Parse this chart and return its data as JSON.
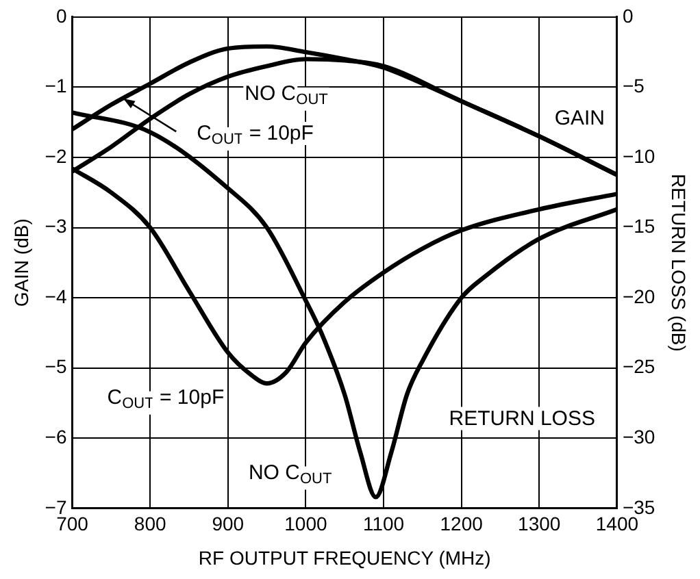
{
  "chart_data": {
    "type": "line",
    "xlabel": "RF OUTPUT FREQUENCY (MHz)",
    "ylabel": "GAIN (dB)",
    "y2label": "RETURN LOSS (dB)",
    "xlim": [
      700,
      1400
    ],
    "xticks": [
      700,
      800,
      900,
      1000,
      1100,
      1200,
      1300,
      1400
    ],
    "ylim": [
      -7,
      0
    ],
    "yticks": [
      {
        "value": -7,
        "label": "−7"
      },
      {
        "value": -6,
        "label": "−6"
      },
      {
        "value": -5,
        "label": "−5"
      },
      {
        "value": -4,
        "label": "−4"
      },
      {
        "value": -3,
        "label": "−3"
      },
      {
        "value": -2,
        "label": "−2"
      },
      {
        "value": -1,
        "label": "−1"
      },
      0
    ],
    "y2lim": [
      -35,
      0
    ],
    "y2ticks": [
      {
        "value": -35,
        "label": "−35"
      },
      {
        "value": -30,
        "label": "−30"
      },
      {
        "value": -25,
        "label": "−25"
      },
      {
        "value": -20,
        "label": "−20"
      },
      {
        "value": -15,
        "label": "−15"
      },
      {
        "value": -10,
        "label": "−10"
      },
      {
        "value": -5,
        "label": "−5"
      },
      0
    ],
    "grid": true,
    "legend": false,
    "marker": "none",
    "line_style": "solid",
    "series": [
      {
        "color": "#000000",
        "x": [
          700,
          750,
          800,
          850,
          900,
          950,
          1000,
          1050,
          1100,
          1200,
          1300,
          1400
        ],
        "values": [
          -2.2,
          -1.85,
          -1.45,
          -1.1,
          -0.85,
          -0.7,
          -0.6,
          -0.62,
          -0.7,
          -1.2,
          -1.7,
          -2.25
        ]
      },
      {
        "color": "#000000",
        "x": [
          700,
          750,
          800,
          850,
          900,
          950,
          1000,
          1050,
          1100,
          1150,
          1200,
          1300,
          1400
        ],
        "values": [
          -1.6,
          -1.25,
          -0.95,
          -0.65,
          -0.45,
          -0.42,
          -0.5,
          -0.6,
          -0.72,
          -0.95,
          -1.2,
          -1.7,
          -2.25
        ]
      },
      {
        "color": "#000000",
        "axis": "y2",
        "x": [
          700,
          750,
          800,
          850,
          900,
          930,
          950,
          975,
          1000,
          1050,
          1100,
          1150,
          1200,
          1300,
          1400
        ],
        "values": [
          -10.8,
          -12.5,
          -15,
          -19.5,
          -23.9,
          -25.5,
          -26.1,
          -25.3,
          -23.2,
          -20.3,
          -18.2,
          -16.5,
          -15.2,
          -13.7,
          -12.6
        ]
      },
      {
        "color": "#000000",
        "axis": "y2",
        "x": [
          700,
          800,
          900,
          950,
          1000,
          1020,
          1050,
          1070,
          1090,
          1110,
          1130,
          1150,
          1200,
          1230,
          1300,
          1400
        ],
        "values": [
          -6.8,
          -8.2,
          -12.2,
          -15,
          -20.2,
          -22.5,
          -26.9,
          -31,
          -34.2,
          -31,
          -26.9,
          -24.5,
          -20,
          -18.5,
          -15.8,
          -13.7
        ]
      }
    ],
    "annotations": [
      "NO C$_{OUT}$",
      {
        "text": "C$_{OUT}$ = 10pF",
        "x": 765,
        "y": -1.16
      },
      "GAIN",
      "C$_{OUT}$ = 10pF",
      "RETURN LOSS",
      "NO C$_{OUT}$"
    ]
  }
}
